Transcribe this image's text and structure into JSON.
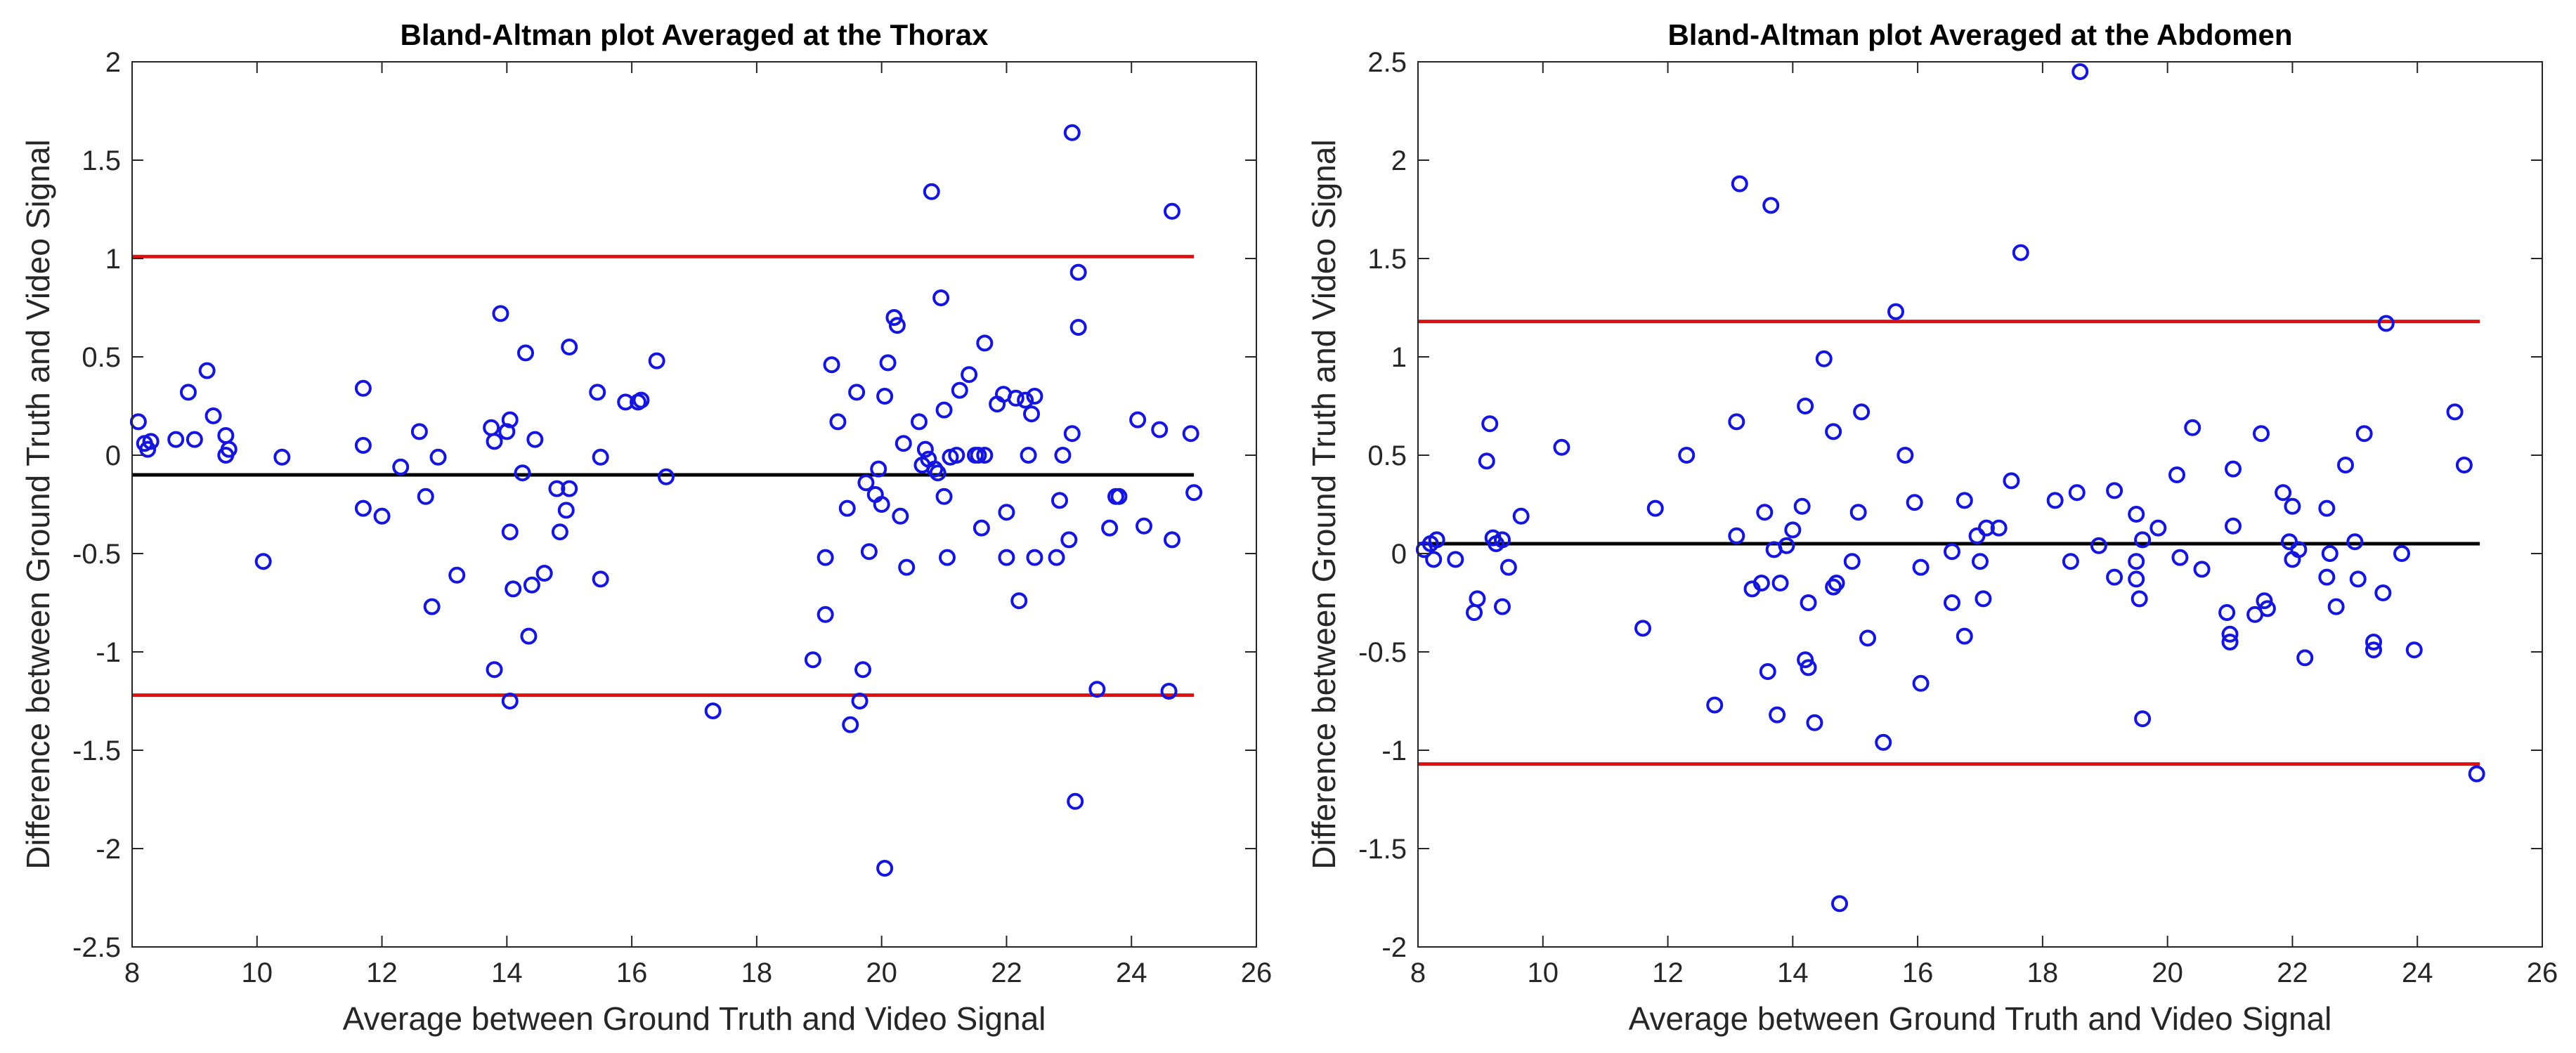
{
  "figure": {
    "marker_color": "#1515e0",
    "limit_line_color": "#e01010",
    "mean_line_color": "#000000"
  },
  "chart_data": [
    {
      "type": "scatter",
      "title": "Bland-Altman plot Averaged at the Thorax",
      "xlabel": "Average between Ground Truth and Video Signal",
      "ylabel": "Difference between Ground Truth and Video Signal",
      "xlim": [
        8,
        26
      ],
      "ylim": [
        -2.5,
        2
      ],
      "xticks": [
        8,
        10,
        12,
        14,
        16,
        18,
        20,
        22,
        24,
        26
      ],
      "yticks": [
        -2.5,
        -2,
        -1.5,
        -1,
        -0.5,
        0,
        0.5,
        1,
        1.5,
        2
      ],
      "xtick_labels": [
        "8",
        "10",
        "12",
        "14",
        "16",
        "18",
        "20",
        "22",
        "24",
        "26"
      ],
      "ytick_labels": [
        "-2.5",
        "-2",
        "-1.5",
        "-1",
        "-0.5",
        "0",
        "0.5",
        "1",
        "1.5",
        "2"
      ],
      "mean_line": {
        "y": -0.1,
        "x_range": [
          8,
          25
        ]
      },
      "limit_lines": [
        {
          "name": "upper",
          "y": 1.01,
          "x_range": [
            8,
            25
          ]
        },
        {
          "name": "lower",
          "y": -1.22,
          "x_range": [
            8,
            25
          ]
        }
      ],
      "points": [
        [
          8.1,
          0.17
        ],
        [
          8.2,
          0.06
        ],
        [
          8.25,
          0.03
        ],
        [
          8.3,
          0.07
        ],
        [
          8.7,
          0.08
        ],
        [
          8.9,
          0.32
        ],
        [
          9.0,
          0.08
        ],
        [
          9.2,
          0.43
        ],
        [
          9.3,
          0.2
        ],
        [
          9.5,
          0.1
        ],
        [
          9.5,
          0.0
        ],
        [
          9.55,
          0.03
        ],
        [
          10.1,
          -0.54
        ],
        [
          10.4,
          -0.01
        ],
        [
          11.7,
          0.34
        ],
        [
          11.7,
          0.05
        ],
        [
          11.7,
          -0.27
        ],
        [
          12.0,
          -0.31
        ],
        [
          12.3,
          -0.06
        ],
        [
          12.6,
          0.12
        ],
        [
          12.7,
          -0.21
        ],
        [
          12.8,
          -0.77
        ],
        [
          12.9,
          -0.01
        ],
        [
          13.2,
          -0.61
        ],
        [
          13.75,
          0.14
        ],
        [
          13.8,
          0.07
        ],
        [
          13.8,
          -1.09
        ],
        [
          13.9,
          0.72
        ],
        [
          14.0,
          0.12
        ],
        [
          14.05,
          0.18
        ],
        [
          14.05,
          -0.39
        ],
        [
          14.05,
          -1.25
        ],
        [
          14.1,
          -0.68
        ],
        [
          14.25,
          -0.09
        ],
        [
          14.3,
          0.52
        ],
        [
          14.35,
          -0.92
        ],
        [
          14.4,
          -0.66
        ],
        [
          14.45,
          0.08
        ],
        [
          14.6,
          -0.6
        ],
        [
          14.8,
          -0.17
        ],
        [
          14.85,
          -0.39
        ],
        [
          14.95,
          -0.28
        ],
        [
          15.0,
          -0.17
        ],
        [
          15.0,
          0.55
        ],
        [
          15.45,
          0.32
        ],
        [
          15.5,
          -0.63
        ],
        [
          15.5,
          -0.01
        ],
        [
          15.9,
          0.27
        ],
        [
          16.1,
          0.27
        ],
        [
          16.15,
          0.28
        ],
        [
          16.4,
          0.48
        ],
        [
          16.55,
          -0.11
        ],
        [
          17.3,
          -1.3
        ],
        [
          18.9,
          -1.04
        ],
        [
          19.1,
          -0.81
        ],
        [
          19.1,
          -0.52
        ],
        [
          19.2,
          0.46
        ],
        [
          19.3,
          0.17
        ],
        [
          19.45,
          -0.27
        ],
        [
          19.5,
          -1.37
        ],
        [
          19.6,
          0.32
        ],
        [
          19.65,
          -1.25
        ],
        [
          19.7,
          -1.09
        ],
        [
          19.75,
          -0.14
        ],
        [
          19.8,
          -0.49
        ],
        [
          19.9,
          -0.2
        ],
        [
          19.95,
          -0.07
        ],
        [
          20.0,
          -0.25
        ],
        [
          20.05,
          0.3
        ],
        [
          20.05,
          -2.1
        ],
        [
          20.1,
          0.47
        ],
        [
          20.2,
          0.7
        ],
        [
          20.25,
          0.66
        ],
        [
          20.3,
          -0.31
        ],
        [
          20.35,
          0.06
        ],
        [
          20.4,
          -0.57
        ],
        [
          20.6,
          0.17
        ],
        [
          20.65,
          -0.05
        ],
        [
          20.7,
          0.03
        ],
        [
          20.75,
          -0.02
        ],
        [
          20.8,
          1.34
        ],
        [
          20.85,
          -0.07
        ],
        [
          20.9,
          -0.09
        ],
        [
          20.95,
          0.8
        ],
        [
          21.0,
          0.23
        ],
        [
          21.0,
          -0.21
        ],
        [
          21.05,
          -0.52
        ],
        [
          21.1,
          -0.01
        ],
        [
          21.2,
          0.0
        ],
        [
          21.25,
          0.33
        ],
        [
          21.4,
          0.41
        ],
        [
          21.5,
          0.0
        ],
        [
          21.55,
          0.0
        ],
        [
          21.6,
          -0.37
        ],
        [
          21.65,
          0.0
        ],
        [
          21.65,
          0.57
        ],
        [
          21.85,
          0.26
        ],
        [
          21.95,
          0.31
        ],
        [
          22.0,
          -0.29
        ],
        [
          22.0,
          -0.52
        ],
        [
          22.15,
          0.29
        ],
        [
          22.2,
          -0.74
        ],
        [
          22.3,
          0.28
        ],
        [
          22.35,
          0.0
        ],
        [
          22.4,
          0.21
        ],
        [
          22.45,
          0.3
        ],
        [
          22.45,
          -0.52
        ],
        [
          22.8,
          -0.52
        ],
        [
          22.85,
          -0.23
        ],
        [
          22.9,
          0.0
        ],
        [
          23.0,
          -0.43
        ],
        [
          23.05,
          0.11
        ],
        [
          23.05,
          1.64
        ],
        [
          23.1,
          -1.76
        ],
        [
          23.15,
          0.93
        ],
        [
          23.15,
          0.65
        ],
        [
          23.45,
          -1.19
        ],
        [
          23.65,
          -0.37
        ],
        [
          23.75,
          -0.21
        ],
        [
          23.8,
          -0.21
        ],
        [
          24.1,
          0.18
        ],
        [
          24.2,
          -0.36
        ],
        [
          24.45,
          0.13
        ],
        [
          24.6,
          -1.2
        ],
        [
          24.65,
          1.24
        ],
        [
          24.65,
          -0.43
        ],
        [
          24.95,
          0.11
        ],
        [
          25.0,
          -0.19
        ]
      ]
    },
    {
      "type": "scatter",
      "title": "Bland-Altman plot Averaged at the Abdomen",
      "xlabel": "Average between Ground Truth and Video Signal",
      "ylabel": "Difference between Ground Truth and Video Signal",
      "xlim": [
        8,
        26
      ],
      "ylim": [
        -2,
        2.5
      ],
      "xticks": [
        8,
        10,
        12,
        14,
        16,
        18,
        20,
        22,
        24,
        26
      ],
      "yticks": [
        -2,
        -1.5,
        -1,
        -0.5,
        0,
        0.5,
        1,
        1.5,
        2,
        2.5
      ],
      "xtick_labels": [
        "8",
        "10",
        "12",
        "14",
        "16",
        "18",
        "20",
        "22",
        "24",
        "26"
      ],
      "ytick_labels": [
        "-2",
        "-1.5",
        "-1",
        "-0.5",
        "0",
        "0.5",
        "1",
        "1.5",
        "2",
        "2.5"
      ],
      "mean_line": {
        "y": 0.05,
        "x_range": [
          8,
          25
        ]
      },
      "limit_lines": [
        {
          "name": "upper",
          "y": 1.18,
          "x_range": [
            8,
            25
          ]
        },
        {
          "name": "lower",
          "y": -1.07,
          "x_range": [
            8,
            25
          ]
        }
      ],
      "points": [
        [
          8.1,
          0.02
        ],
        [
          8.2,
          0.05
        ],
        [
          8.25,
          -0.03
        ],
        [
          8.3,
          0.07
        ],
        [
          8.6,
          -0.03
        ],
        [
          8.9,
          -0.3
        ],
        [
          8.95,
          -0.23
        ],
        [
          9.1,
          0.47
        ],
        [
          9.15,
          0.66
        ],
        [
          9.2,
          0.08
        ],
        [
          9.25,
          0.05
        ],
        [
          9.35,
          0.07
        ],
        [
          9.35,
          -0.27
        ],
        [
          9.45,
          -0.07
        ],
        [
          9.65,
          0.19
        ],
        [
          10.3,
          0.54
        ],
        [
          11.6,
          -0.38
        ],
        [
          11.8,
          0.23
        ],
        [
          12.3,
          0.5
        ],
        [
          12.75,
          -0.77
        ],
        [
          13.1,
          0.67
        ],
        [
          13.1,
          0.09
        ],
        [
          13.15,
          1.88
        ],
        [
          13.35,
          -0.18
        ],
        [
          13.5,
          -0.15
        ],
        [
          13.55,
          0.21
        ],
        [
          13.6,
          -0.6
        ],
        [
          13.65,
          1.77
        ],
        [
          13.7,
          0.02
        ],
        [
          13.75,
          -0.82
        ],
        [
          13.8,
          -0.15
        ],
        [
          13.9,
          0.04
        ],
        [
          14.0,
          0.12
        ],
        [
          14.15,
          0.24
        ],
        [
          14.2,
          0.75
        ],
        [
          14.2,
          -0.54
        ],
        [
          14.25,
          -0.25
        ],
        [
          14.25,
          -0.58
        ],
        [
          14.35,
          -0.86
        ],
        [
          14.5,
          0.99
        ],
        [
          14.65,
          0.62
        ],
        [
          14.65,
          -0.17
        ],
        [
          14.7,
          -0.15
        ],
        [
          14.75,
          -1.78
        ],
        [
          14.95,
          -0.04
        ],
        [
          15.05,
          0.21
        ],
        [
          15.1,
          0.72
        ],
        [
          15.2,
          -0.43
        ],
        [
          15.45,
          -0.96
        ],
        [
          15.65,
          1.23
        ],
        [
          15.8,
          0.5
        ],
        [
          15.95,
          0.26
        ],
        [
          16.05,
          -0.07
        ],
        [
          16.05,
          -0.66
        ],
        [
          16.55,
          -0.25
        ],
        [
          16.55,
          0.01
        ],
        [
          16.75,
          0.27
        ],
        [
          16.75,
          -0.42
        ],
        [
          16.95,
          0.09
        ],
        [
          17.0,
          -0.04
        ],
        [
          17.05,
          -0.23
        ],
        [
          17.1,
          0.13
        ],
        [
          17.3,
          0.13
        ],
        [
          17.5,
          0.37
        ],
        [
          17.65,
          1.53
        ],
        [
          18.2,
          0.27
        ],
        [
          18.45,
          -0.04
        ],
        [
          18.55,
          0.31
        ],
        [
          18.6,
          2.45
        ],
        [
          18.9,
          0.04
        ],
        [
          19.15,
          0.32
        ],
        [
          19.15,
          -0.12
        ],
        [
          19.5,
          0.2
        ],
        [
          19.5,
          -0.04
        ],
        [
          19.5,
          -0.13
        ],
        [
          19.55,
          -0.23
        ],
        [
          19.6,
          0.07
        ],
        [
          19.6,
          -0.84
        ],
        [
          19.85,
          0.13
        ],
        [
          20.15,
          0.4
        ],
        [
          20.2,
          -0.02
        ],
        [
          20.4,
          0.64
        ],
        [
          20.55,
          -0.08
        ],
        [
          20.95,
          -0.3
        ],
        [
          21.0,
          -0.41
        ],
        [
          21.0,
          -0.45
        ],
        [
          21.05,
          0.43
        ],
        [
          21.05,
          0.14
        ],
        [
          21.4,
          -0.31
        ],
        [
          21.5,
          0.61
        ],
        [
          21.55,
          -0.24
        ],
        [
          21.6,
          -0.28
        ],
        [
          21.85,
          0.31
        ],
        [
          21.95,
          0.06
        ],
        [
          22.0,
          0.24
        ],
        [
          22.0,
          -0.03
        ],
        [
          22.1,
          0.02
        ],
        [
          22.2,
          -0.53
        ],
        [
          22.55,
          0.23
        ],
        [
          22.55,
          -0.12
        ],
        [
          22.6,
          0.0
        ],
        [
          22.7,
          -0.27
        ],
        [
          22.85,
          0.45
        ],
        [
          23.0,
          0.06
        ],
        [
          23.05,
          -0.13
        ],
        [
          23.15,
          0.61
        ],
        [
          23.3,
          -0.45
        ],
        [
          23.3,
          -0.49
        ],
        [
          23.45,
          -0.2
        ],
        [
          23.5,
          1.17
        ],
        [
          23.75,
          0.0
        ],
        [
          23.95,
          -0.49
        ],
        [
          24.6,
          0.72
        ],
        [
          24.75,
          0.45
        ],
        [
          24.95,
          -1.12
        ]
      ]
    }
  ]
}
